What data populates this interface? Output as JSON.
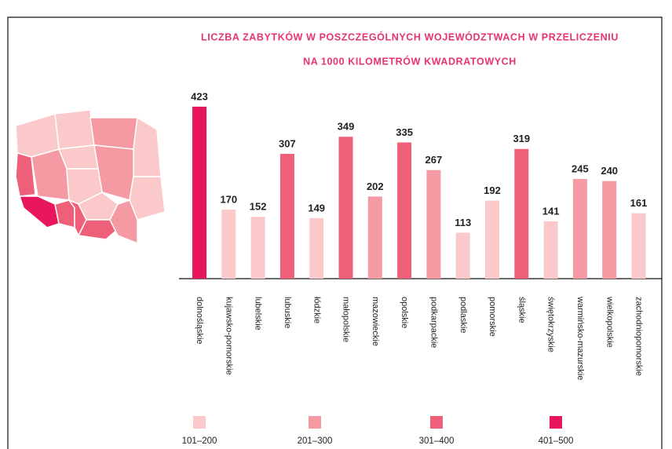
{
  "chart_data": {
    "type": "bar",
    "title": [
      "LICZBA ZABYTKÓW W POSZCZEGÓLNYCH WOJEWÓDZTWACH W PRZELICZENIU",
      "NA 1000 KILOMETRÓW KWADRATOWYCH"
    ],
    "categories": [
      "dolnośląskie",
      "kujawsko-pomorskie",
      "lubelskie",
      "lubuskie",
      "łódzkie",
      "małopolskie",
      "mazowieckie",
      "opolskie",
      "podkarpackie",
      "podlaskie",
      "pomorskie",
      "śląskie",
      "świętokrzyskie",
      "warmińsko-mazurskie",
      "wielkopolskie",
      "zachodniopomorskie"
    ],
    "values": [
      423,
      170,
      152,
      307,
      149,
      349,
      202,
      335,
      267,
      113,
      192,
      319,
      141,
      245,
      240,
      161
    ],
    "colors": [
      "#e8175d",
      "#fbc9c9",
      "#fbc9c9",
      "#ee6079",
      "#fbc9c9",
      "#ee6079",
      "#f59aa3",
      "#ee6079",
      "#f59aa3",
      "#fbc9c9",
      "#fbc9c9",
      "#ee6079",
      "#fbc9c9",
      "#f59aa3",
      "#f59aa3",
      "#fbc9c9"
    ],
    "ylim": [
      0,
      500
    ],
    "legend": [
      {
        "label": "101–200",
        "color": "#fbc9c9"
      },
      {
        "label": "201–300",
        "color": "#f59aa3"
      },
      {
        "label": "301–400",
        "color": "#ee6079"
      },
      {
        "label": "401–500",
        "color": "#e8175d"
      }
    ]
  }
}
